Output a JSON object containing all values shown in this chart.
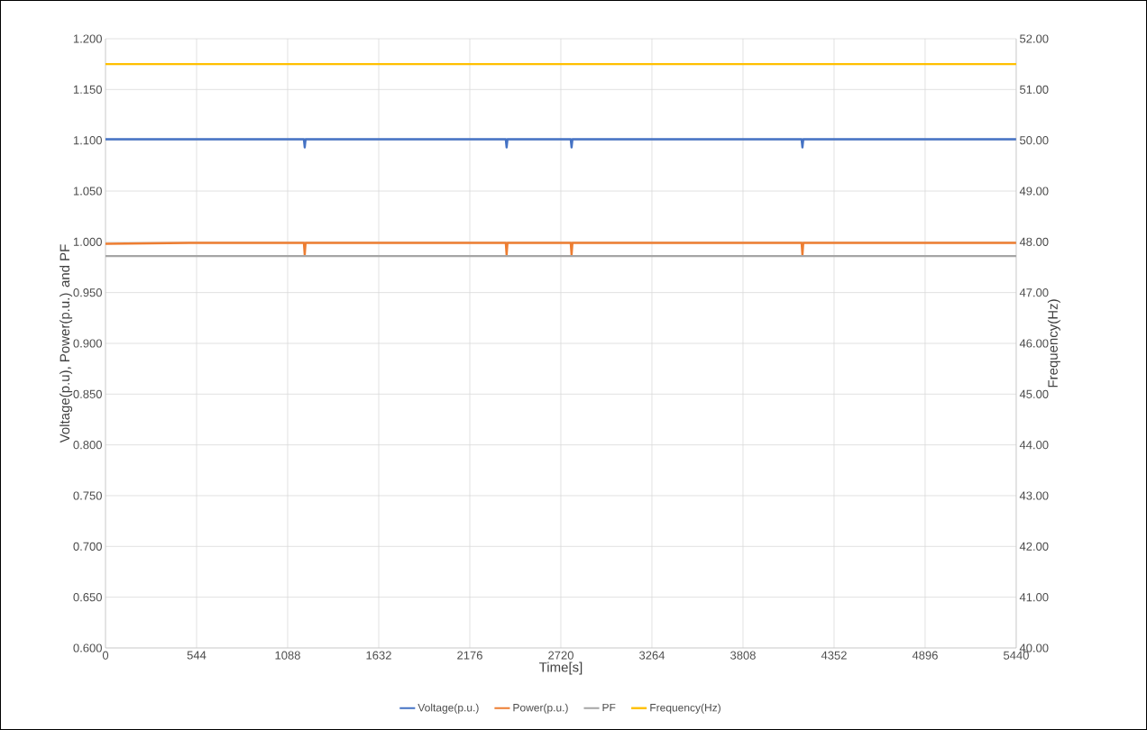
{
  "chart_data": {
    "type": "line",
    "xlabel": "Time[s]",
    "ylabel": "Voltage(p.u), Power(p.u.) and PF",
    "y2label": "Frequency(Hz)",
    "xlim": [
      0,
      5440
    ],
    "xticks": [
      0,
      544,
      1088,
      1632,
      2176,
      2720,
      3264,
      3808,
      4352,
      4896,
      5440
    ],
    "ylim": [
      0.6,
      1.2
    ],
    "yticks": [
      {
        "value": 0.6,
        "label": "0.600"
      },
      {
        "value": 0.65,
        "label": "0.650"
      },
      {
        "value": 0.7,
        "label": "0.700"
      },
      {
        "value": 0.75,
        "label": "0.750"
      },
      {
        "value": 0.8,
        "label": "0.800"
      },
      {
        "value": 0.85,
        "label": "0.850"
      },
      {
        "value": 0.9,
        "label": "0.900"
      },
      {
        "value": 0.95,
        "label": "0.950"
      },
      {
        "value": 1.0,
        "label": "1.000"
      },
      {
        "value": 1.05,
        "label": "1.050"
      },
      {
        "value": 1.1,
        "label": "1.100"
      },
      {
        "value": 1.15,
        "label": "1.150"
      },
      {
        "value": 1.2,
        "label": "1.200"
      }
    ],
    "y2lim": [
      40,
      52
    ],
    "y2ticks": [
      {
        "value": 40,
        "label": "40.00"
      },
      {
        "value": 41,
        "label": "41.00"
      },
      {
        "value": 42,
        "label": "42.00"
      },
      {
        "value": 43,
        "label": "43.00"
      },
      {
        "value": 44,
        "label": "44.00"
      },
      {
        "value": 45,
        "label": "45.00"
      },
      {
        "value": 46,
        "label": "46.00"
      },
      {
        "value": 47,
        "label": "47.00"
      },
      {
        "value": 48,
        "label": "48.00"
      },
      {
        "value": 49,
        "label": "49.00"
      },
      {
        "value": 50,
        "label": "50.00"
      },
      {
        "value": 51,
        "label": "51.00"
      },
      {
        "value": 52,
        "label": "52.00"
      }
    ],
    "grid": true,
    "legend": "bottom",
    "marker": "none",
    "line_style": "solid",
    "series": [
      {
        "name": "Voltage(p.u.)",
        "color": "#4472c4",
        "x": [
          0,
          1185,
          1190,
          1195,
          2391,
          2396,
          2401,
          2779,
          2784,
          2789,
          4158,
          4163,
          4168,
          5440
        ],
        "values": [
          1.101,
          1.101,
          1.093,
          1.101,
          1.101,
          1.093,
          1.101,
          1.101,
          1.093,
          1.101,
          1.101,
          1.093,
          1.101,
          1.101
        ]
      },
      {
        "name": "Power(p.u.)",
        "color": "#ed7d31",
        "x": [
          0,
          500,
          1185,
          1190,
          1195,
          2391,
          2396,
          2401,
          2779,
          2784,
          2789,
          4158,
          4163,
          4168,
          5440
        ],
        "values": [
          0.998,
          0.999,
          0.999,
          0.987,
          0.999,
          0.999,
          0.987,
          0.999,
          0.999,
          0.987,
          0.999,
          0.999,
          0.987,
          0.999,
          0.999
        ]
      },
      {
        "name": "PF",
        "color": "#a5a5a5",
        "x": [
          0,
          5440
        ],
        "values": [
          0.986,
          0.986
        ]
      },
      {
        "name": "Frequency(Hz)",
        "color": "#ffc000",
        "axis": "y2",
        "x": [
          0,
          5440
        ],
        "values": [
          51.5,
          51.5
        ]
      }
    ]
  }
}
